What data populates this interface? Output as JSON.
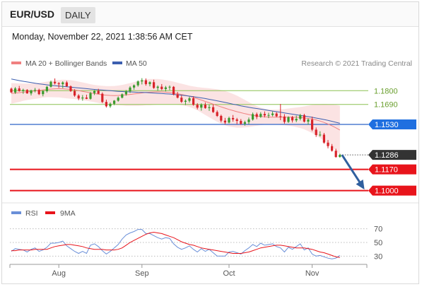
{
  "header": {
    "symbol": "EUR/USD",
    "period": "DAILY"
  },
  "datetime": "Monday, November 22, 2021 1:38:56 AM CET",
  "legend": {
    "ma20_bb": "MA 20 + Bollinger Bands",
    "ma50": "MA 50",
    "credit": "Research © 2021 Trading Central"
  },
  "rsi_legend": {
    "rsi": "RSI",
    "ma9": "9MA"
  },
  "colors": {
    "bull": "#3a9a2e",
    "bear": "#d8232a",
    "ma20": "#f08080",
    "band": "#fbe3e3",
    "ma50": "#3c5fb0",
    "pivot": "#2f64c8",
    "support": "#e8141b",
    "resistance": "#8cc152",
    "last": "#333333",
    "arrow": "#2f5f9e",
    "rsi": "#6a8fd8",
    "rsi_ma": "#e8141b"
  },
  "chart_data": [
    {
      "type": "candlestick",
      "title": "EUR/USD DAILY",
      "ylim": [
        1.093,
        1.196
      ],
      "x_months": [
        "Aug",
        "Sep",
        "Oct",
        "Nov"
      ],
      "levels": [
        {
          "value": 1.18,
          "label": "1.1800",
          "kind": "resistance"
        },
        {
          "value": 1.169,
          "label": "1.1690",
          "kind": "resistance"
        },
        {
          "value": 1.153,
          "label": "1.1530",
          "kind": "pivot"
        },
        {
          "value": 1.1286,
          "label": "1.1286",
          "kind": "last"
        },
        {
          "value": 1.117,
          "label": "1.1170",
          "kind": "support"
        },
        {
          "value": 1.1,
          "label": "1.1000",
          "kind": "support"
        }
      ],
      "candles": [
        [
          1.1816,
          1.1825,
          1.1782,
          1.1786
        ],
        [
          1.1786,
          1.1829,
          1.1774,
          1.1818
        ],
        [
          1.1818,
          1.1838,
          1.1792,
          1.1797
        ],
        [
          1.1797,
          1.1816,
          1.1775,
          1.1806
        ],
        [
          1.1806,
          1.1812,
          1.1776,
          1.1778
        ],
        [
          1.1778,
          1.1808,
          1.1762,
          1.1801
        ],
        [
          1.1801,
          1.1822,
          1.1786,
          1.1806
        ],
        [
          1.1806,
          1.1816,
          1.1765,
          1.1772
        ],
        [
          1.1772,
          1.1804,
          1.1755,
          1.1796
        ],
        [
          1.1796,
          1.1838,
          1.1785,
          1.1831
        ],
        [
          1.1831,
          1.1881,
          1.1825,
          1.1871
        ],
        [
          1.1871,
          1.1898,
          1.1849,
          1.1859
        ],
        [
          1.1859,
          1.1869,
          1.1823,
          1.1852
        ],
        [
          1.1852,
          1.1875,
          1.182,
          1.1866
        ],
        [
          1.1866,
          1.1878,
          1.1832,
          1.1835
        ],
        [
          1.1835,
          1.1842,
          1.179,
          1.1797
        ],
        [
          1.1797,
          1.1812,
          1.1751,
          1.1761
        ],
        [
          1.1761,
          1.1772,
          1.1724,
          1.1738
        ],
        [
          1.1738,
          1.1765,
          1.172,
          1.1745
        ],
        [
          1.1745,
          1.1768,
          1.1732,
          1.1735
        ],
        [
          1.1735,
          1.179,
          1.1728,
          1.178
        ],
        [
          1.178,
          1.1805,
          1.1765,
          1.1799
        ],
        [
          1.1799,
          1.1815,
          1.1774,
          1.1775
        ],
        [
          1.1775,
          1.1786,
          1.1701,
          1.171
        ],
        [
          1.171,
          1.1728,
          1.1665,
          1.1675
        ],
        [
          1.1675,
          1.1705,
          1.1663,
          1.1695
        ],
        [
          1.1695,
          1.1725,
          1.1684,
          1.172
        ],
        [
          1.172,
          1.1754,
          1.1712,
          1.1744
        ],
        [
          1.1744,
          1.1778,
          1.1738,
          1.1771
        ],
        [
          1.1771,
          1.1805,
          1.176,
          1.1795
        ],
        [
          1.1795,
          1.1836,
          1.1782,
          1.1825
        ],
        [
          1.1825,
          1.185,
          1.1808,
          1.1843
        ],
        [
          1.1843,
          1.1882,
          1.1832,
          1.1874
        ],
        [
          1.1874,
          1.19,
          1.185,
          1.1883
        ],
        [
          1.1883,
          1.1898,
          1.184,
          1.1853
        ],
        [
          1.1853,
          1.1875,
          1.1835,
          1.1868
        ],
        [
          1.1868,
          1.1888,
          1.1815,
          1.1822
        ],
        [
          1.1822,
          1.1842,
          1.18,
          1.1832
        ],
        [
          1.1832,
          1.1853,
          1.1804,
          1.1813
        ],
        [
          1.1813,
          1.1838,
          1.1794,
          1.1826
        ],
        [
          1.1826,
          1.1842,
          1.1805,
          1.1831
        ],
        [
          1.1831,
          1.1837,
          1.1763,
          1.1771
        ],
        [
          1.1771,
          1.179,
          1.1738,
          1.1744
        ],
        [
          1.1744,
          1.1762,
          1.1702,
          1.1711
        ],
        [
          1.1711,
          1.173,
          1.1685,
          1.1719
        ],
        [
          1.1719,
          1.1752,
          1.1705,
          1.1739
        ],
        [
          1.1739,
          1.1755,
          1.168,
          1.1687
        ],
        [
          1.1687,
          1.17,
          1.165,
          1.1664
        ],
        [
          1.1664,
          1.1699,
          1.164,
          1.1688
        ],
        [
          1.1688,
          1.1706,
          1.1655,
          1.1661
        ],
        [
          1.1661,
          1.1688,
          1.1638,
          1.1668
        ],
        [
          1.1668,
          1.169,
          1.1622,
          1.1629
        ],
        [
          1.1629,
          1.1642,
          1.159,
          1.1598
        ],
        [
          1.1598,
          1.1608,
          1.1546,
          1.156
        ],
        [
          1.156,
          1.1582,
          1.153,
          1.1545
        ],
        [
          1.1545,
          1.1592,
          1.1538,
          1.1581
        ],
        [
          1.1581,
          1.1605,
          1.1552,
          1.157
        ],
        [
          1.157,
          1.1582,
          1.1532,
          1.1558
        ],
        [
          1.1558,
          1.1573,
          1.1526,
          1.1535
        ],
        [
          1.1535,
          1.156,
          1.152,
          1.1548
        ],
        [
          1.1548,
          1.1585,
          1.1532,
          1.1569
        ],
        [
          1.1569,
          1.1625,
          1.156,
          1.1612
        ],
        [
          1.1612,
          1.1625,
          1.1572,
          1.159
        ],
        [
          1.159,
          1.1628,
          1.1583,
          1.1614
        ],
        [
          1.1614,
          1.1634,
          1.1586,
          1.1602
        ],
        [
          1.1602,
          1.1623,
          1.158,
          1.1605
        ],
        [
          1.1605,
          1.1633,
          1.1594,
          1.1617
        ],
        [
          1.1617,
          1.1628,
          1.1588,
          1.1595
        ],
        [
          1.1595,
          1.1694,
          1.1564,
          1.1593
        ],
        [
          1.1593,
          1.1612,
          1.1536,
          1.155
        ],
        [
          1.155,
          1.1595,
          1.1542,
          1.1588
        ],
        [
          1.1588,
          1.1598,
          1.1545,
          1.1562
        ],
        [
          1.1562,
          1.16,
          1.1548,
          1.1575
        ],
        [
          1.1575,
          1.1614,
          1.1562,
          1.1604
        ],
        [
          1.1604,
          1.1615,
          1.1545,
          1.1552
        ],
        [
          1.1552,
          1.1578,
          1.1528,
          1.1568
        ],
        [
          1.1568,
          1.1592,
          1.1476,
          1.1488
        ],
        [
          1.1488,
          1.1505,
          1.143,
          1.1445
        ],
        [
          1.1445,
          1.1475,
          1.1432,
          1.1448
        ],
        [
          1.1448,
          1.1462,
          1.1375,
          1.1384
        ],
        [
          1.1384,
          1.1405,
          1.1338,
          1.1356
        ],
        [
          1.1356,
          1.1373,
          1.1312,
          1.1319
        ],
        [
          1.1319,
          1.1335,
          1.1263,
          1.1269
        ],
        [
          1.1269,
          1.1295,
          1.1264,
          1.1286
        ]
      ],
      "ma20": [
        1.1778,
        1.1781,
        1.1784,
        1.1788,
        1.1791,
        1.1794,
        1.1797,
        1.1801,
        1.1806,
        1.181,
        1.1813,
        1.1815,
        1.1816,
        1.1815,
        1.1813,
        1.181,
        1.1806,
        1.1801,
        1.1795,
        1.1789,
        1.1783,
        1.1777,
        1.1772,
        1.1767,
        1.1764,
        1.1762,
        1.1761,
        1.1762,
        1.1764,
        1.1766,
        1.177,
        1.1774,
        1.1778,
        1.1782,
        1.1786,
        1.1788,
        1.179,
        1.1791,
        1.179,
        1.1788,
        1.1785,
        1.1781,
        1.1776,
        1.177,
        1.1763,
        1.1755,
        1.1746,
        1.1736,
        1.1725,
        1.1714,
        1.1703,
        1.1692,
        1.1681,
        1.167,
        1.166,
        1.165,
        1.1641,
        1.1632,
        1.1624,
        1.1616,
        1.1609,
        1.1603,
        1.1598,
        1.1594,
        1.1591,
        1.1589,
        1.1588,
        1.1588,
        1.1588,
        1.1588,
        1.1588,
        1.1588,
        1.1587,
        1.1585,
        1.1582,
        1.1578,
        1.1573,
        1.1566,
        1.1557,
        1.1546,
        1.1533,
        1.1519,
        1.1503,
        1.1485
      ],
      "bb_upper": [
        1.1861,
        1.1859,
        1.1858,
        1.1857,
        1.1857,
        1.1858,
        1.186,
        1.1863,
        1.1867,
        1.1872,
        1.1878,
        1.1883,
        1.1886,
        1.1888,
        1.1887,
        1.1884,
        1.1879,
        1.1873,
        1.1866,
        1.1859,
        1.1852,
        1.1846,
        1.1842,
        1.1839,
        1.1837,
        1.1837,
        1.1838,
        1.1841,
        1.1846,
        1.1853,
        1.1861,
        1.1869,
        1.1877,
        1.1884,
        1.1889,
        1.1893,
        1.1894,
        1.1893,
        1.189,
        1.1885,
        1.1879,
        1.1872,
        1.1864,
        1.1856,
        1.1848,
        1.184,
        1.1834,
        1.1829,
        1.1825,
        1.1822,
        1.1819,
        1.1815,
        1.1811,
        1.1805,
        1.1797,
        1.1787,
        1.1774,
        1.176,
        1.1744,
        1.1726,
        1.1709,
        1.1692,
        1.1677,
        1.1664,
        1.1655,
        1.165,
        1.1648,
        1.1648,
        1.165,
        1.1653,
        1.1657,
        1.1661,
        1.1665,
        1.1669,
        1.1674,
        1.168,
        1.1686,
        1.169,
        1.1692,
        1.1694,
        1.1692,
        1.169,
        1.1686,
        1.168
      ],
      "bb_lower": [
        1.1695,
        1.1703,
        1.171,
        1.1719,
        1.1725,
        1.173,
        1.1734,
        1.1739,
        1.1745,
        1.1748,
        1.1748,
        1.1747,
        1.1746,
        1.1742,
        1.1739,
        1.1736,
        1.1733,
        1.1729,
        1.1724,
        1.1719,
        1.1714,
        1.1708,
        1.1702,
        1.1695,
        1.1691,
        1.1687,
        1.1684,
        1.1683,
        1.1682,
        1.1679,
        1.1679,
        1.1679,
        1.1679,
        1.168,
        1.1683,
        1.1683,
        1.1686,
        1.1689,
        1.169,
        1.1691,
        1.1691,
        1.169,
        1.1688,
        1.1684,
        1.1678,
        1.167,
        1.1658,
        1.1643,
        1.1625,
        1.1606,
        1.1587,
        1.1569,
        1.1551,
        1.1535,
        1.1523,
        1.1513,
        1.1508,
        1.1504,
        1.1504,
        1.1506,
        1.1509,
        1.1514,
        1.1519,
        1.1524,
        1.1527,
        1.1528,
        1.1528,
        1.1528,
        1.1526,
        1.1523,
        1.1519,
        1.1515,
        1.1509,
        1.1501,
        1.149,
        1.1476,
        1.146,
        1.1442,
        1.1422,
        1.1398,
        1.1374,
        1.1348,
        1.132,
        1.129
      ],
      "ma50": [
        1.1893,
        1.1887,
        1.1881,
        1.1875,
        1.187,
        1.1865,
        1.186,
        1.1855,
        1.1851,
        1.1847,
        1.1843,
        1.184,
        1.1837,
        1.1834,
        1.1831,
        1.1828,
        1.1825,
        1.1822,
        1.1819,
        1.1816,
        1.1813,
        1.181,
        1.1807,
        1.1805,
        1.1802,
        1.18,
        1.1797,
        1.1795,
        1.1793,
        1.1792,
        1.179,
        1.1789,
        1.1787,
        1.1786,
        1.1785,
        1.1783,
        1.1781,
        1.1779,
        1.1777,
        1.1775,
        1.1773,
        1.177,
        1.1767,
        1.1764,
        1.176,
        1.1756,
        1.1752,
        1.1747,
        1.1742,
        1.1737,
        1.1731,
        1.1725,
        1.1719,
        1.1712,
        1.1706,
        1.1699,
        1.1692,
        1.1686,
        1.1679,
        1.1673,
        1.1667,
        1.1662,
        1.1657,
        1.1652,
        1.1647,
        1.1642,
        1.1637,
        1.1632,
        1.1627,
        1.1622,
        1.1617,
        1.1612,
        1.1607,
        1.1602,
        1.1597,
        1.1592,
        1.1587,
        1.1581,
        1.1575,
        1.1569,
        1.1562,
        1.1555,
        1.1547,
        1.1539
      ],
      "projection": [
        1.1286,
        1.1
      ]
    },
    {
      "type": "line",
      "title": "RSI",
      "ylim": [
        20,
        80
      ],
      "ticks": [
        30,
        50,
        70
      ],
      "series": [
        {
          "name": "RSI",
          "values": [
            37,
            41,
            40,
            39,
            36,
            40,
            42,
            37,
            39,
            43,
            49,
            49,
            50,
            52,
            45,
            41,
            37,
            34,
            37,
            34,
            46,
            48,
            44,
            38,
            33,
            37,
            42,
            47,
            55,
            61,
            64,
            66,
            69,
            69,
            63,
            63,
            60,
            57,
            55,
            57,
            56,
            48,
            43,
            40,
            42,
            45,
            40,
            36,
            41,
            37,
            40,
            35,
            30,
            30,
            30,
            36,
            37,
            35,
            33,
            38,
            42,
            47,
            44,
            49,
            46,
            47,
            48,
            44,
            42,
            36,
            43,
            40,
            44,
            48,
            39,
            42,
            33,
            30,
            31,
            29,
            27,
            26,
            27,
            31
          ]
        },
        {
          "name": "9MA",
          "values": [
            38,
            38,
            39,
            39,
            39,
            39,
            40,
            40,
            40,
            40,
            42,
            44,
            45,
            46,
            47,
            47,
            46,
            45,
            44,
            42,
            41,
            40,
            40,
            40,
            39,
            39,
            39,
            40,
            42,
            46,
            50,
            53,
            56,
            59,
            62,
            64,
            65,
            64,
            63,
            61,
            59,
            57,
            54,
            51,
            49,
            47,
            46,
            44,
            42,
            41,
            40,
            39,
            38,
            37,
            36,
            35,
            34,
            34,
            34,
            35,
            36,
            38,
            40,
            42,
            43,
            44,
            45,
            46,
            46,
            45,
            44,
            43,
            42,
            42,
            42,
            41,
            40,
            38,
            36,
            35,
            33,
            31,
            29,
            28
          ]
        }
      ]
    }
  ]
}
